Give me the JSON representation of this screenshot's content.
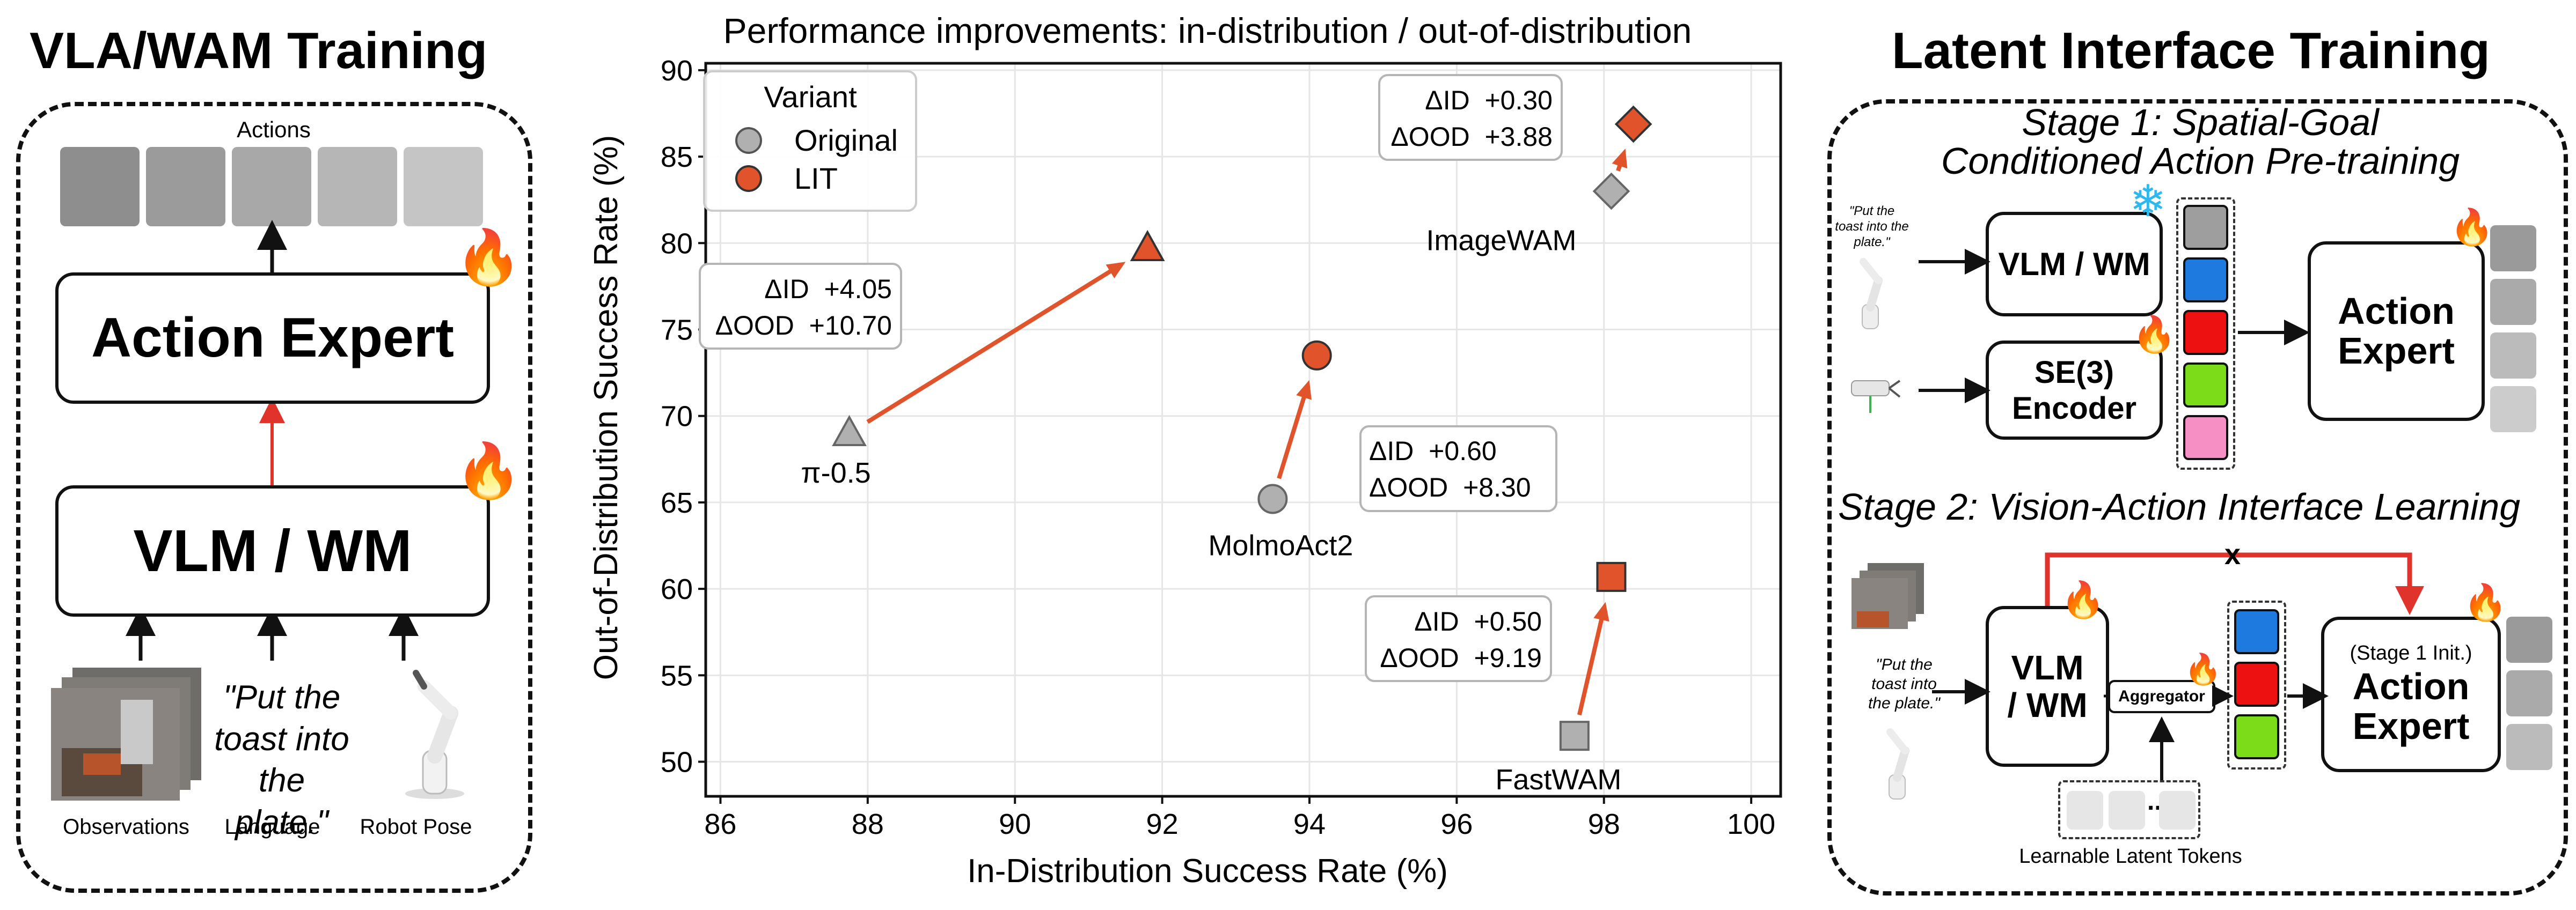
{
  "left_panel": {
    "title": "VLA/WAM Training",
    "actions_label": "Actions",
    "action_expert_label": "Action Expert",
    "vlm_label": "VLM / WM",
    "language_text": "\"Put the toast into the plate.\"",
    "captions": [
      "Observations",
      "Language",
      "Robot Pose"
    ],
    "action_colors": [
      "#8e8e8e",
      "#9b9b9b",
      "#a8a8a8",
      "#b6b6b6",
      "#c5c5c5"
    ]
  },
  "right_panel": {
    "title": "Latent Interface Training",
    "stage1_title": "Stage 1: Spatial-Goal Conditioned Action Pre-training",
    "stage1_title_line1": "Stage 1: Spatial-Goal",
    "stage1_title_line2": "Conditioned Action Pre-training",
    "stage1_instruction": "\"Put the toast into the plate.\"",
    "stage1_vlm_label": "VLM / WM",
    "se3_label": "SE(3) Encoder",
    "stage1_action_expert_label": "Action Expert",
    "stage1_token_colors": [
      "#9e9e9e",
      "#1f7ae0",
      "#ee1111",
      "#7cdc1a",
      "#f58fc4"
    ],
    "stage2_title": "Stage 2: Vision-Action Interface Learning",
    "stage2_instruction": "\"Put the toast into the plate.\"",
    "stage2_vlm_label": "VLM / WM",
    "aggregator_label": "Aggregator",
    "skip_mark": "x",
    "init_note": "(Stage 1 Init.)",
    "stage2_action_expert_label": "Action Expert",
    "latent_tokens_label": "Learnable Latent Tokens",
    "latent_ellipsis": "...",
    "stage2_token_colors": [
      "#1f7ae0",
      "#ee1111",
      "#7cdc1a"
    ],
    "output_colors": [
      "#9a9a9a",
      "#aaaaaa",
      "#bbbbbb",
      "#cccccc"
    ]
  },
  "chart_data": {
    "type": "scatter",
    "title": "Performance improvements: in-distribution / out-of-distribution",
    "xlabel": "In-Distribution Success Rate (%)",
    "ylabel": "Out-of-Distribution Success Rate (%)",
    "xlim": [
      85.8,
      100.4
    ],
    "ylim": [
      48.0,
      90.4
    ],
    "xticks": [
      86,
      88,
      90,
      92,
      94,
      96,
      98,
      100
    ],
    "yticks": [
      50,
      55,
      60,
      65,
      70,
      75,
      80,
      85,
      90
    ],
    "grid": true,
    "legend": {
      "title": "Variant",
      "placement": "top-left",
      "entries": [
        "Original",
        "LIT"
      ]
    },
    "colors": {
      "original": "#b0b0b0",
      "lit": "#e0532b",
      "arrow": "#e0532b"
    },
    "models": [
      {
        "name": "π-0.5",
        "marker": "triangle",
        "original": [
          87.75,
          69.0
        ],
        "lit": [
          91.8,
          79.7
        ],
        "delta_id": "ΔID  +4.05",
        "delta_ood": "ΔOOD  +10.70"
      },
      {
        "name": "MolmoAct2",
        "marker": "circle",
        "original": [
          93.5,
          65.2
        ],
        "lit": [
          94.1,
          73.5
        ],
        "delta_id": "ΔID  +0.60",
        "delta_ood": "ΔOOD  +8.30"
      },
      {
        "name": "ImageWAM",
        "marker": "diamond",
        "original": [
          98.1,
          83.0
        ],
        "lit": [
          98.4,
          86.88
        ],
        "delta_id": "ΔID  +0.30",
        "delta_ood": "ΔOOD  +3.88"
      },
      {
        "name": "FastWAM",
        "marker": "square",
        "original": [
          97.6,
          51.5
        ],
        "lit": [
          98.1,
          60.69
        ],
        "delta_id": "ΔID  +0.50",
        "delta_ood": "ΔOOD  +9.19"
      }
    ]
  }
}
